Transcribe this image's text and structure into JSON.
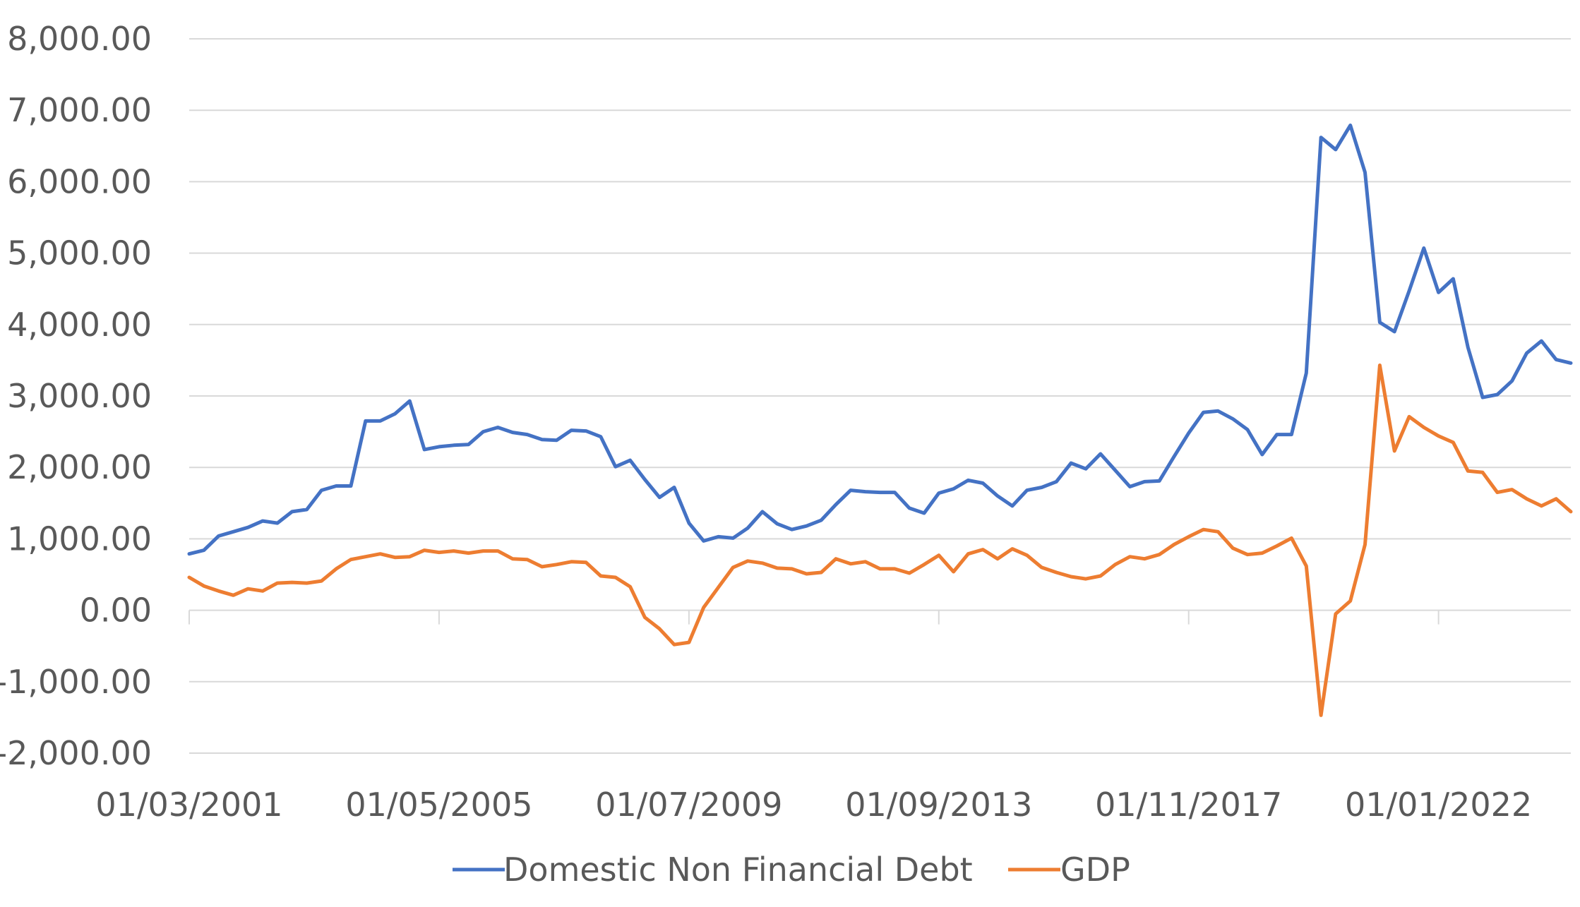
{
  "chart_data": {
    "type": "line",
    "title": "",
    "xlabel": "",
    "ylabel": "",
    "ylim": [
      -2000,
      8000
    ],
    "y_ticks": [
      -2000,
      -1000,
      0,
      1000,
      2000,
      3000,
      4000,
      5000,
      6000,
      7000,
      8000
    ],
    "y_tick_labels": [
      "-2,000.00",
      "-1,000.00",
      "0.00",
      "1,000.00",
      "2,000.00",
      "3,000.00",
      "4,000.00",
      "5,000.00",
      "6,000.00",
      "7,000.00",
      "8,000.00"
    ],
    "x_start": "01/03/2001",
    "x_interval_months": 3,
    "x_tick_labels": [
      "01/03/2001",
      "01/05/2005",
      "01/07/2009",
      "01/09/2013",
      "01/11/2017",
      "01/01/2022"
    ],
    "x_tick_index": [
      0,
      17,
      34,
      51,
      68,
      85
    ],
    "grid": "horizontal",
    "legend_position": "bottom",
    "series": [
      {
        "name": "Domestic Non Financial Debt",
        "color": "#4472c4",
        "values": [
          790,
          840,
          1040,
          1100,
          1160,
          1250,
          1220,
          1380,
          1410,
          1680,
          1740,
          1740,
          2650,
          2650,
          2750,
          2930,
          2250,
          2290,
          2310,
          2320,
          2500,
          2560,
          2490,
          2460,
          2390,
          2380,
          2520,
          2510,
          2430,
          2010,
          2100,
          1830,
          1580,
          1720,
          1220,
          970,
          1030,
          1010,
          1150,
          1380,
          1210,
          1130,
          1180,
          1260,
          1480,
          1680,
          1660,
          1650,
          1650,
          1430,
          1360,
          1640,
          1700,
          1820,
          1780,
          1600,
          1460,
          1680,
          1720,
          1800,
          2060,
          1980,
          2190,
          1960,
          1730,
          1800,
          1810,
          2150,
          2480,
          2770,
          2790,
          2680,
          2530,
          2180,
          2460,
          2460,
          3320,
          6620,
          6450,
          6790,
          6130,
          4030,
          3900,
          4470,
          5070,
          4450,
          4640,
          3680,
          2980,
          3020,
          3210,
          3600,
          3770,
          3510,
          3460
        ]
      },
      {
        "name": "GDP",
        "color": "#ed7d31",
        "values": [
          460,
          340,
          270,
          210,
          300,
          270,
          380,
          390,
          380,
          410,
          580,
          710,
          750,
          790,
          740,
          750,
          840,
          810,
          830,
          800,
          830,
          830,
          720,
          710,
          610,
          640,
          680,
          670,
          480,
          460,
          330,
          -100,
          -260,
          -480,
          -450,
          40,
          320,
          600,
          690,
          660,
          590,
          580,
          510,
          530,
          720,
          650,
          680,
          580,
          580,
          520,
          640,
          770,
          540,
          790,
          850,
          720,
          860,
          770,
          600,
          530,
          470,
          440,
          480,
          640,
          750,
          720,
          780,
          920,
          1030,
          1130,
          1100,
          870,
          780,
          800,
          900,
          1010,
          620,
          -1470,
          -50,
          130,
          920,
          3430,
          2230,
          2710,
          2560,
          2440,
          2350,
          1950,
          1930,
          1650,
          1690,
          1560,
          1460,
          1560,
          1380
        ]
      }
    ]
  }
}
